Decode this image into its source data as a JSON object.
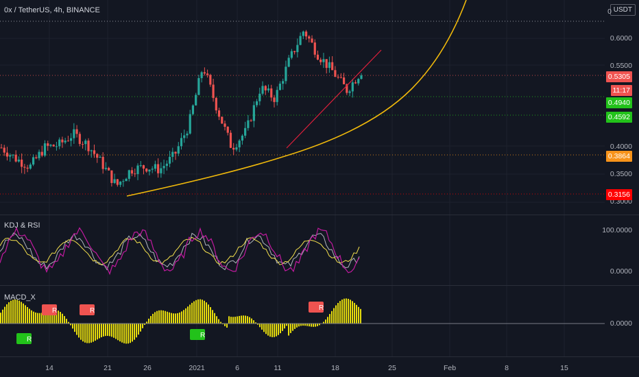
{
  "header": {
    "symbol_title": "0x / TetherUS, 4h, BINANCE",
    "unit_label": "USDT"
  },
  "colors": {
    "background": "#131722",
    "up": "#26a69a",
    "down": "#ef5350",
    "trend_curve": "#f0b90b",
    "trend_line": "#e0203c",
    "macd_fill": "#fff30a",
    "kdj_k": "#b2b5be",
    "kdj_d": "#f4e04d",
    "rsi": "#c21aa0"
  },
  "price_badges": [
    {
      "label": "0.5305",
      "color": "#ef5350"
    },
    {
      "label": "11:17",
      "color": "#ef5350"
    },
    {
      "label": "0.4940",
      "color": "#22c21a"
    },
    {
      "label": "0.4592",
      "color": "#22c21a"
    },
    {
      "label": "0.3864",
      "color": "#f7931a"
    },
    {
      "label": "0.3156",
      "color": "#ff0000"
    }
  ],
  "indicators": {
    "kdj_title": "KDJ & RSI",
    "macd_title": "MACD_X",
    "kdj_ticks": [
      "100.0000",
      "0.0000"
    ],
    "macd_ticks": [
      "0.0000"
    ],
    "signal_label_r": "R"
  },
  "chart_data": {
    "type": "candlestick",
    "y_axis_ticks": [
      "0.6000",
      "0.5500",
      "0.4000",
      "0.3500",
      "0.3000"
    ],
    "x_axis_ticks": [
      "14",
      "21",
      "26",
      "2021",
      "6",
      "11",
      "18",
      "25",
      "Feb",
      "8",
      "15"
    ],
    "ylim": [
      0.29,
      0.68
    ],
    "horizontal_levels": [
      0.625,
      0.5305,
      0.494,
      0.4592,
      0.3864,
      0.3156
    ],
    "grid": true,
    "series": [
      {
        "name": "0x / TetherUS",
        "approx_close_path": [
          0.4,
          0.38,
          0.365,
          0.4,
          0.405,
          0.425,
          0.405,
          0.37,
          0.33,
          0.36,
          0.365,
          0.36,
          0.385,
          0.44,
          0.55,
          0.47,
          0.4,
          0.43,
          0.51,
          0.49,
          0.56,
          0.615,
          0.57,
          0.54,
          0.505,
          0.54
        ]
      }
    ]
  }
}
